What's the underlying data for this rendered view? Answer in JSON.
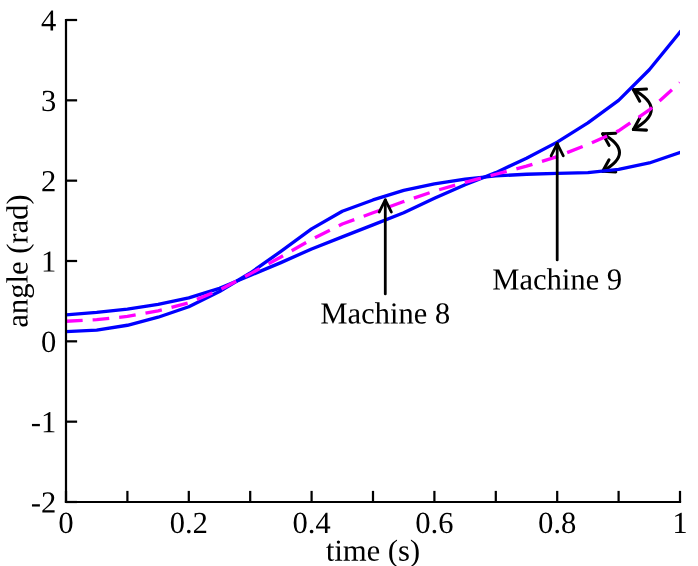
{
  "chart_data": {
    "type": "line",
    "xlabel": "time (s)",
    "ylabel": "angle (rad)",
    "x": [
      0,
      0.05,
      0.1,
      0.15,
      0.2,
      0.25,
      0.3,
      0.35,
      0.4,
      0.45,
      0.5,
      0.55,
      0.6,
      0.65,
      0.7,
      0.75,
      0.8,
      0.85,
      0.9,
      0.95,
      1.0
    ],
    "series": [
      {
        "color": "#0000ff",
        "line_style": "solid",
        "values": [
          0.12,
          0.14,
          0.2,
          0.3,
          0.43,
          0.62,
          0.85,
          1.12,
          1.4,
          1.62,
          1.76,
          1.88,
          1.96,
          2.02,
          2.06,
          2.08,
          2.09,
          2.1,
          2.14,
          2.22,
          2.35
        ]
      },
      {
        "color": "#0000ff",
        "line_style": "solid",
        "values": [
          0.33,
          0.36,
          0.4,
          0.46,
          0.54,
          0.66,
          0.82,
          0.98,
          1.15,
          1.3,
          1.45,
          1.6,
          1.78,
          1.95,
          2.1,
          2.28,
          2.48,
          2.72,
          3.0,
          3.38,
          3.85
        ]
      },
      {
        "color": "#ff00ff",
        "line_style": "dashed",
        "values": [
          0.25,
          0.27,
          0.31,
          0.38,
          0.48,
          0.64,
          0.84,
          1.05,
          1.27,
          1.46,
          1.6,
          1.74,
          1.87,
          1.98,
          2.08,
          2.18,
          2.3,
          2.45,
          2.62,
          2.88,
          3.22
        ]
      }
    ],
    "xlim": [
      0,
      1
    ],
    "ylim": [
      -2,
      4
    ],
    "xticks": [
      0,
      {
        "value": 0.1,
        "label": null
      },
      0.2,
      {
        "value": 0.3,
        "label": null
      },
      0.4,
      {
        "value": 0.5,
        "label": null
      },
      0.6,
      {
        "value": 0.7,
        "label": null
      },
      0.8,
      {
        "value": 0.9,
        "label": null
      },
      1
    ],
    "yticks": [
      -2,
      -1,
      0,
      1,
      2,
      3,
      4
    ],
    "annotations": [
      {
        "text": "Machine 8",
        "x": 0.52,
        "y": 1.8
      },
      {
        "text": "Machine 9",
        "x": 0.8,
        "y": 2.5
      }
    ],
    "grid": false,
    "legend": false,
    "marker": "none"
  }
}
